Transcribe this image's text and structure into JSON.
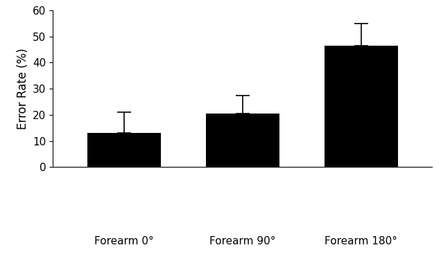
{
  "chart_data": {
    "type": "bar",
    "y_label": "Error Rate (%)",
    "categories": [
      "Forearm 0°",
      "Forearm 90°",
      "Forearm 180°"
    ],
    "values": [
      13,
      20.5,
      46.5
    ],
    "errors": [
      8,
      7,
      8.5
    ],
    "color": "#000000",
    "ylim": [
      0,
      60
    ],
    "yticks": [
      0,
      10,
      20,
      30,
      40,
      50,
      60
    ],
    "grid": false
  }
}
